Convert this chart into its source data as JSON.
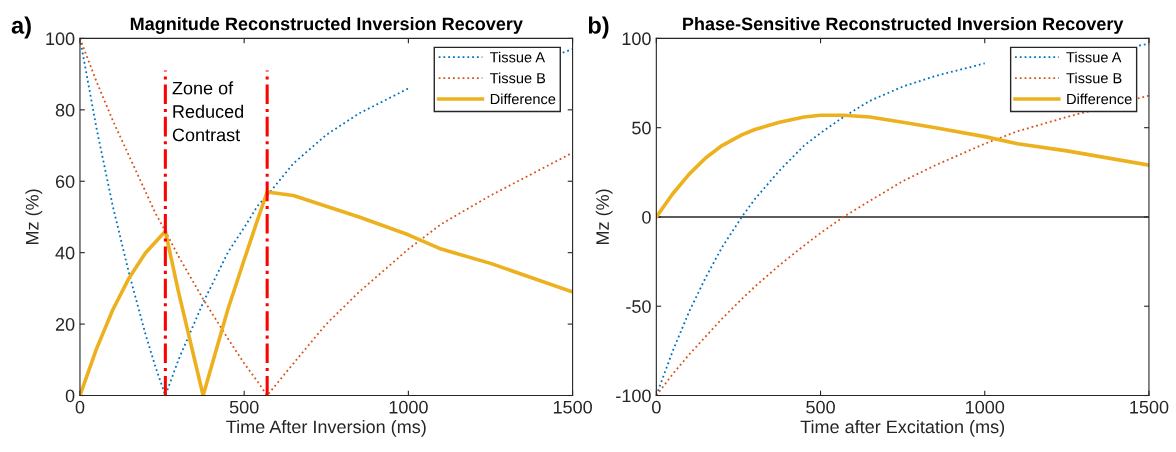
{
  "chart_data": [
    {
      "type": "line",
      "title": "Magnitude Reconstructed Inversion Recovery",
      "xlabel": "Time After Inversion (ms)",
      "ylabel": "Mz (%)",
      "annotations": [
        "a)",
        "Zone of\nReduced\nContrast"
      ],
      "series": [
        {
          "name": "Tissue A",
          "color": "#0072bd",
          "line_style": "dotted",
          "x": [
            0,
            50,
            100,
            150,
            200,
            230,
            260,
            300,
            375,
            450,
            500,
            540,
            570,
            650,
            750,
            850,
            1000,
            1100,
            1250,
            1470,
            1500
          ],
          "values": [
            100,
            75,
            53,
            34,
            17,
            8,
            0,
            10,
            26,
            40,
            47,
            53,
            56,
            65,
            73,
            79,
            86,
            null,
            null,
            96,
            97
          ]
        },
        {
          "name": "Tissue B",
          "color": "#d95319",
          "line_style": "dotted",
          "x": [
            0,
            50,
            100,
            150,
            200,
            230,
            260,
            300,
            375,
            450,
            500,
            540,
            570,
            650,
            750,
            850,
            1000,
            1100,
            1250,
            1500
          ],
          "values": [
            100,
            88,
            77,
            67,
            57,
            51,
            46,
            39,
            27,
            16,
            9,
            4,
            0,
            9,
            20,
            29,
            41,
            48,
            56,
            68
          ]
        },
        {
          "name": "Difference",
          "color": "#edb120",
          "line_style": "solid",
          "x": [
            0,
            50,
            100,
            150,
            200,
            230,
            260,
            300,
            375,
            450,
            500,
            540,
            570,
            650,
            750,
            850,
            1000,
            1100,
            1250,
            1500
          ],
          "values": [
            0,
            13,
            24,
            33,
            40,
            43,
            46,
            29,
            0,
            24,
            38,
            49,
            57,
            56,
            53,
            50,
            45,
            41,
            37,
            29
          ]
        }
      ],
      "ref_lines": [
        {
          "axis": "x",
          "value": 260,
          "color": "#ff0000",
          "line_style": "dashdot"
        },
        {
          "axis": "x",
          "value": 570,
          "color": "#ff0000",
          "line_style": "dashdot"
        }
      ],
      "xlim": [
        0,
        1500
      ],
      "ylim": [
        0,
        100
      ],
      "xticks": [
        0,
        500,
        1000,
        1500
      ],
      "yticks": [
        0,
        20,
        40,
        60,
        80,
        100
      ],
      "grid": false,
      "legend": "top right"
    },
    {
      "type": "line",
      "title": "Phase-Sensitive Reconstructed Inversion Recovery",
      "xlabel": "Time after Excitation (ms)",
      "ylabel": "Mz (%)",
      "annotations": [
        "b)"
      ],
      "series": [
        {
          "name": "Tissue A",
          "color": "#0072bd",
          "line_style": "dotted",
          "x": [
            0,
            50,
            100,
            150,
            200,
            260,
            300,
            375,
            450,
            500,
            570,
            650,
            750,
            850,
            1000,
            1100,
            1250,
            1470,
            1500
          ],
          "values": [
            -100,
            -75,
            -53,
            -34,
            -17,
            0,
            10,
            26,
            40,
            47,
            56,
            65,
            73,
            79,
            86,
            null,
            null,
            96,
            97
          ]
        },
        {
          "name": "Tissue B",
          "color": "#d95319",
          "line_style": "dotted",
          "x": [
            0,
            50,
            100,
            150,
            200,
            260,
            300,
            375,
            450,
            500,
            570,
            650,
            750,
            850,
            1000,
            1100,
            1250,
            1500
          ],
          "values": [
            -100,
            -88,
            -77,
            -67,
            -57,
            -46,
            -39,
            -27,
            -16,
            -9,
            0,
            9,
            20,
            29,
            41,
            48,
            56,
            68
          ]
        },
        {
          "name": "Difference",
          "color": "#edb120",
          "line_style": "solid",
          "x": [
            0,
            50,
            100,
            150,
            200,
            260,
            300,
            375,
            450,
            500,
            570,
            650,
            750,
            850,
            1000,
            1100,
            1250,
            1500
          ],
          "values": [
            0,
            13,
            24,
            33,
            40,
            46,
            49,
            53,
            56,
            57,
            57,
            56,
            53,
            50,
            45,
            41,
            37,
            29
          ]
        }
      ],
      "ref_lines": [
        {
          "axis": "y",
          "value": 0,
          "color": "#262626",
          "line_style": "solid"
        }
      ],
      "xlim": [
        0,
        1500
      ],
      "ylim": [
        -100,
        100
      ],
      "xticks": [
        0,
        500,
        1000,
        1500
      ],
      "yticks": [
        -100,
        -50,
        0,
        50,
        100
      ],
      "grid": false,
      "legend": "top right"
    }
  ]
}
